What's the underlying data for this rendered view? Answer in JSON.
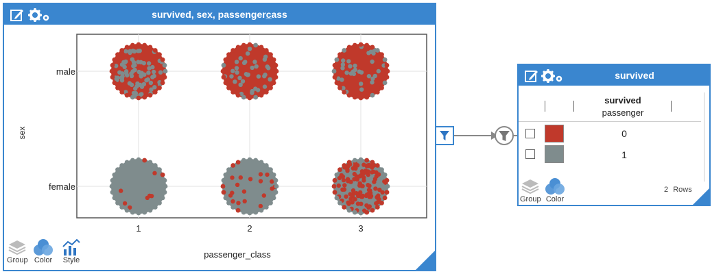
{
  "main_panel": {
    "title": "survived, sex, passengerc̲ass",
    "y_axis_label": "sex",
    "x_axis_label": "passenger_class",
    "x_ticks": [
      "1",
      "2",
      "3"
    ],
    "y_ticks": [
      "male",
      "female"
    ],
    "toolbar": {
      "group_label": "Group",
      "color_label": "Color",
      "style_label": "Style"
    }
  },
  "side_panel": {
    "title": "survived",
    "column_header_bold": "survived",
    "column_header_sub": "passenger",
    "rows": [
      {
        "value": "0",
        "color": "#c0392b"
      },
      {
        "value": "1",
        "color": "#7f8c8d"
      }
    ],
    "row_count": "2",
    "rows_label": "Rows",
    "toolbar": {
      "group_label": "Group",
      "color_label": "Color"
    }
  },
  "colors": {
    "accent": "#3a86cf",
    "not_survived": "#c0392b",
    "survived": "#7f8c8d"
  },
  "chart_data": {
    "type": "scatter",
    "xlabel": "passenger_class",
    "ylabel": "sex",
    "categories_x": [
      "1",
      "2",
      "3"
    ],
    "categories_y": [
      "male",
      "female"
    ],
    "series": [
      {
        "name": "0",
        "color": "#c0392b"
      },
      {
        "name": "1",
        "color": "#7f8c8d"
      }
    ],
    "cells": [
      {
        "x": "1",
        "y": "male",
        "survived_fraction": 0.35
      },
      {
        "x": "2",
        "y": "male",
        "survived_fraction": 0.16
      },
      {
        "x": "3",
        "y": "male",
        "survived_fraction": 0.14
      },
      {
        "x": "1",
        "y": "female",
        "survived_fraction": 0.97
      },
      {
        "x": "2",
        "y": "female",
        "survived_fraction": 0.92
      },
      {
        "x": "3",
        "y": "female",
        "survived_fraction": 0.5
      }
    ],
    "grid": true
  }
}
